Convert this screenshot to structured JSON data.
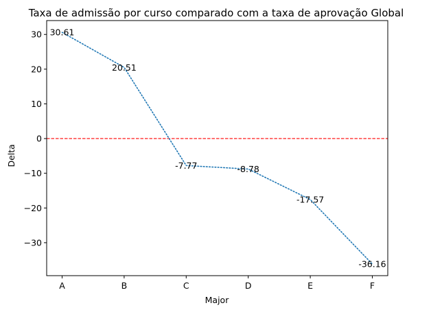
{
  "chart_data": {
    "type": "line",
    "title": "Taxa de admissão por curso comparado com a taxa de aprovação Global",
    "xlabel": "Major",
    "ylabel": "Delta",
    "categories": [
      "A",
      "B",
      "C",
      "D",
      "E",
      "F"
    ],
    "series": [
      {
        "values": [
          30.61,
          20.51,
          -7.77,
          -8.78,
          -17.57,
          -36.16
        ],
        "labels": [
          "30.61",
          "20.51",
          "-7.77",
          "-8.78",
          "-17.57",
          "-36.16"
        ],
        "color": "#1f77b4",
        "line_style": "dotted"
      }
    ],
    "ylim": [
      -39.5,
      34.0
    ],
    "yticks": [
      30,
      20,
      10,
      0,
      -10,
      -20,
      -30
    ],
    "ytick_labels": [
      "30",
      "20",
      "10",
      "0",
      "−10",
      "−20",
      "−30"
    ],
    "reference_line": {
      "y": 0,
      "color": "#ff0000",
      "style": "dashed"
    },
    "grid": false,
    "legend": "none"
  }
}
